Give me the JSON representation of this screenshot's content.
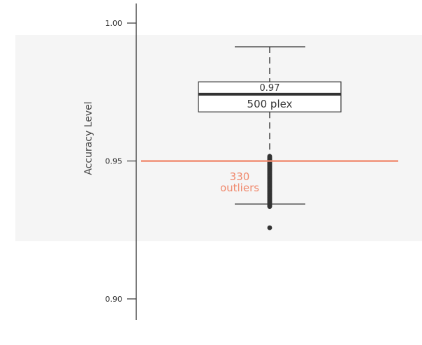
{
  "chart_data": {
    "type": "box",
    "ylabel": "Accuracy Level",
    "ylim": [
      0.8924,
      1.0071
    ],
    "yticks": [
      {
        "value": 1.0,
        "label": "1.00"
      },
      {
        "value": 0.95,
        "label": "0.95"
      },
      {
        "value": 0.9,
        "label": "0.90"
      }
    ],
    "grid": false,
    "shaded_band": {
      "from": 0.921,
      "to": 0.9957,
      "color": "#f5f5f5"
    },
    "box": {
      "whisker_high": 0.9914,
      "q3": 0.9787,
      "median": 0.9742,
      "q1": 0.9678,
      "whisker_low": 0.9344,
      "median_label": "0.97",
      "box_label": "500 plex"
    },
    "outliers": {
      "dense_range": [
        0.9335,
        0.9517
      ],
      "isolated": [
        0.9258
      ],
      "annotation_count": "330",
      "annotation_text": "outliers"
    },
    "threshold": {
      "value": 0.95,
      "color": "#f08a6e"
    },
    "colors": {
      "axis": "#333333",
      "box": "#333333",
      "annotation": "#f08a6e"
    }
  }
}
